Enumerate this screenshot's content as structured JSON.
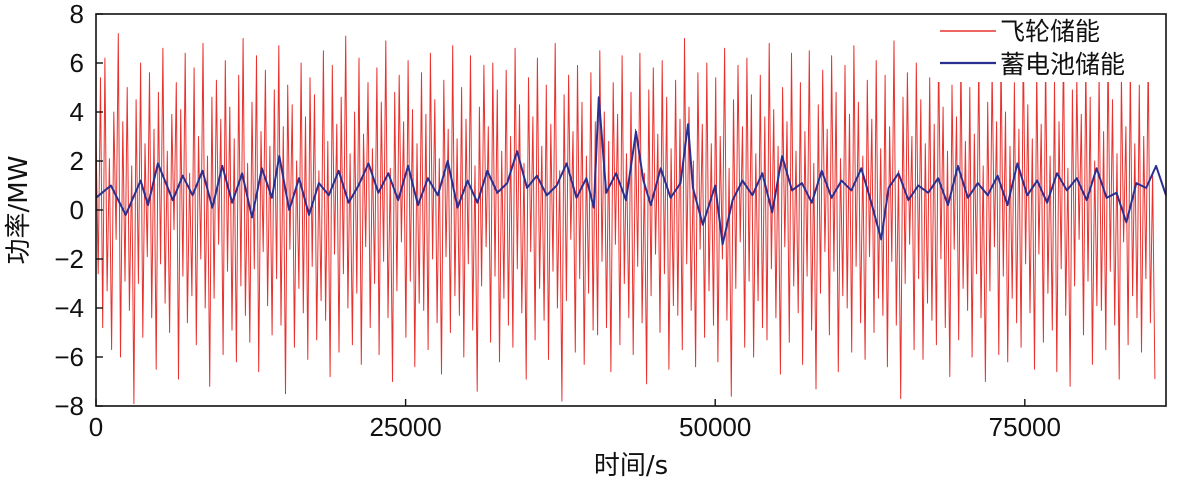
{
  "chart_data": {
    "type": "line",
    "title": "",
    "xlabel": "时间/s",
    "ylabel": "功率/MW",
    "xlim": [
      0,
      86400
    ],
    "ylim": [
      -8,
      8
    ],
    "x_ticks": [
      0,
      25000,
      50000,
      75000
    ],
    "x_tick_labels": [
      "0",
      "25000",
      "50000",
      "75000"
    ],
    "y_ticks": [
      -8,
      -6,
      -4,
      -2,
      0,
      2,
      4,
      6,
      8
    ],
    "y_tick_labels": [
      "−8",
      "−6",
      "−4",
      "−2",
      "0",
      "2",
      "4",
      "6",
      "8"
    ],
    "grid": false,
    "legend_position": "top-right",
    "series": [
      {
        "name": "飞轮储能",
        "color": "#e8322e",
        "x_step": 180,
        "values": [
          3.1,
          -2.6,
          5.4,
          -4.8,
          6.2,
          -3.3,
          2.1,
          -5.7,
          4.0,
          -1.2,
          7.2,
          -6.0,
          3.6,
          -2.9,
          5.0,
          -4.1,
          1.8,
          -7.9,
          4.5,
          -3.0,
          6.0,
          -5.2,
          2.7,
          -1.9,
          5.6,
          -4.4,
          3.3,
          -6.5,
          4.8,
          -2.2,
          6.6,
          -3.8,
          2.4,
          -5.0,
          3.9,
          -0.8,
          5.2,
          -6.9,
          4.1,
          -2.7,
          6.4,
          -4.6,
          1.5,
          -3.5,
          5.8,
          -5.5,
          3.0,
          -2.0,
          6.8,
          -4.0,
          2.2,
          -7.2,
          4.6,
          -3.6,
          5.3,
          -1.4,
          3.7,
          -5.9,
          6.1,
          -2.5,
          4.2,
          -4.9,
          2.9,
          -6.2,
          5.5,
          -3.1,
          7.0,
          -4.3,
          1.9,
          -5.4,
          4.4,
          -2.4,
          6.3,
          -6.6,
          3.2,
          -1.7,
          5.7,
          -3.9,
          2.6,
          -5.1,
          4.9,
          -2.8,
          6.7,
          -4.7,
          3.4,
          -7.5,
          5.1,
          -1.6,
          4.3,
          -5.6,
          2.0,
          -3.2,
          6.0,
          -4.2,
          3.8,
          -6.1,
          5.4,
          -2.3,
          4.7,
          -5.3,
          1.6,
          -3.7,
          6.5,
          -4.5,
          2.8,
          -6.8,
          5.9,
          -1.8,
          3.5,
          -5.8,
          4.6,
          -2.6,
          7.1,
          -4.0,
          2.3,
          -5.5,
          4.0,
          -3.4,
          6.2,
          -6.3,
          3.1,
          -1.5,
          5.2,
          -4.8,
          2.5,
          -3.0,
          5.8,
          -5.9,
          4.4,
          -2.1,
          6.9,
          -4.4,
          1.7,
          -7.0,
          4.8,
          -3.3,
          5.5,
          -1.3,
          3.6,
          -5.2,
          6.1,
          -2.9,
          4.1,
          -6.4,
          2.7,
          -3.8,
          5.6,
          -4.1,
          3.9,
          -5.7,
          6.4,
          -2.0,
          4.5,
          -4.6,
          2.1,
          -6.7,
          5.3,
          -1.9,
          3.3,
          -5.0,
          6.7,
          -3.5,
          2.9,
          -4.3,
          5.0,
          -6.0,
          3.7,
          -2.2,
          6.3,
          -4.9,
          1.8,
          -7.4,
          4.2,
          -3.1,
          5.9,
          -1.5,
          3.4,
          -5.4,
          6.0,
          -2.7,
          4.9,
          -6.2,
          2.4,
          -3.6,
          5.7,
          -4.7,
          3.0,
          -5.6,
          6.6,
          -2.4,
          4.3,
          -4.2,
          1.9,
          -6.9,
          5.4,
          -1.7,
          3.8,
          -5.3,
          6.2,
          -3.2,
          2.6,
          -4.5,
          5.1,
          -6.1,
          3.5,
          -2.5,
          6.8,
          -4.0,
          1.6,
          -7.8,
          4.7,
          -3.7,
          5.5,
          -1.2,
          3.2,
          -5.8,
          5.9,
          -2.8,
          4.4,
          -6.3,
          2.2,
          -3.4,
          5.6,
          -4.9,
          3.6,
          -5.1,
          6.5,
          -2.1,
          4.0,
          -4.8,
          2.8,
          -6.6,
          5.2,
          -1.4,
          3.9,
          -5.5,
          6.3,
          -3.0,
          2.3,
          -4.4,
          4.8,
          -5.9,
          3.3,
          -2.3,
          6.4,
          -4.6,
          1.5,
          -7.1,
          4.9,
          -3.5,
          5.8,
          -1.8,
          3.1,
          -5.0,
          6.1,
          -2.6,
          4.6,
          -6.5,
          2.5,
          -3.9,
          5.3,
          -4.3,
          3.7,
          -5.7,
          7.0,
          -2.2,
          4.2,
          -4.1,
          2.0,
          -6.4,
          5.6,
          -1.6,
          3.5,
          -5.2,
          6.0,
          -3.3,
          2.7,
          -4.7,
          5.4,
          -6.2,
          3.0,
          -2.0,
          6.6,
          -4.5,
          1.7,
          -7.6,
          4.5,
          -3.2,
          5.9,
          -1.3,
          3.4,
          -5.6,
          6.2,
          -2.9,
          4.7,
          -6.0,
          2.3,
          -3.7,
          5.5,
          -4.8,
          3.8,
          -5.3,
          6.8,
          -2.4,
          4.1,
          -4.4,
          2.6,
          -6.7,
          5.0,
          -1.5,
          3.6,
          -5.4,
          6.4,
          -3.1,
          2.4,
          -4.2,
          5.2,
          -6.3,
          3.2,
          -2.7,
          6.5,
          -4.9,
          1.9,
          -7.3,
          4.3,
          -3.4,
          5.7,
          -1.7,
          3.3,
          -5.1,
          6.3,
          -2.5,
          4.8,
          -6.6,
          2.1,
          -3.5,
          5.9,
          -4.0,
          3.9,
          -5.8,
          6.7,
          -2.3,
          4.4,
          -4.6,
          2.2,
          -6.1,
          5.3,
          -1.9,
          3.7,
          -5.0,
          6.1,
          -3.6,
          2.5,
          -4.3,
          5.5,
          -6.4,
          3.4,
          -2.1,
          6.9,
          -4.7,
          1.6,
          -7.7,
          4.6,
          -3.0,
          5.6,
          -1.4,
          3.0,
          -5.7,
          6.0,
          -2.8,
          4.5,
          -6.1,
          2.7,
          -3.8,
          5.4,
          -4.5,
          3.5,
          -5.5,
          6.6,
          -2.0,
          4.2,
          -4.8,
          2.4,
          -6.8,
          5.1,
          -1.6,
          3.8,
          -5.3,
          6.4,
          -3.2,
          2.8,
          -4.1,
          5.0,
          -6.0,
          3.1,
          -2.6,
          6.2,
          -4.4,
          1.8,
          -7.0,
          4.4,
          -3.3,
          5.8,
          -1.5,
          3.6,
          -5.9,
          6.5,
          -2.7,
          4.0,
          -6.2,
          2.6,
          -3.6,
          5.2,
          -4.6,
          3.3,
          -5.6,
          6.9,
          -2.2,
          4.3,
          -4.2,
          2.9,
          -6.5,
          5.7,
          -1.8,
          3.5,
          -5.4,
          6.3,
          -3.4,
          2.2,
          -4.9,
          5.3,
          -6.6,
          3.6,
          -2.4,
          6.7,
          -4.3,
          1.7,
          -7.2,
          4.9,
          -3.1,
          5.4,
          -1.2,
          3.9,
          -5.1,
          6.1,
          -2.9,
          4.6,
          -6.3,
          2.0,
          -3.9,
          5.6,
          -4.1,
          3.2,
          -5.7,
          6.6,
          -2.5,
          4.5,
          -4.7,
          2.3,
          -6.9,
          5.5,
          -1.3,
          3.4,
          -5.5,
          5.9,
          -3.5,
          2.7,
          -4.4,
          5.1,
          -5.8,
          3.0,
          -2.8,
          6.3,
          -4.6,
          1.5,
          -6.9
        ]
      },
      {
        "name": "蓄电池储能",
        "color": "#2b2f8f",
        "x": [
          0,
          1200,
          2400,
          3600,
          4200,
          5000,
          6200,
          7000,
          7800,
          8600,
          9400,
          10200,
          11000,
          11800,
          12600,
          13400,
          14200,
          14800,
          15600,
          16400,
          17200,
          18000,
          18800,
          19600,
          20400,
          21200,
          22000,
          22800,
          23600,
          24400,
          25200,
          26000,
          26800,
          27600,
          28400,
          29200,
          30000,
          30800,
          31600,
          32400,
          33200,
          34000,
          34800,
          35600,
          36400,
          37200,
          38000,
          38800,
          39600,
          40200,
          40600,
          41200,
          42000,
          42800,
          43600,
          44200,
          44800,
          45600,
          46400,
          47200,
          47800,
          48200,
          49000,
          50000,
          50600,
          51400,
          52200,
          53000,
          53800,
          54600,
          55400,
          56200,
          57000,
          57800,
          58600,
          59400,
          60200,
          61000,
          61800,
          62600,
          63400,
          64000,
          64800,
          65600,
          66400,
          67200,
          68000,
          68800,
          69600,
          70400,
          71200,
          72000,
          72800,
          73600,
          74400,
          75200,
          76000,
          76800,
          77600,
          78400,
          79200,
          80000,
          80800,
          81600,
          82400,
          83200,
          84000,
          84800,
          85600,
          86400
        ],
        "values": [
          0.5,
          1.0,
          -0.2,
          1.2,
          0.2,
          1.9,
          0.4,
          1.4,
          0.6,
          1.6,
          0.1,
          1.8,
          0.3,
          1.5,
          -0.3,
          1.7,
          0.5,
          2.2,
          0.0,
          1.3,
          -0.2,
          1.1,
          0.6,
          1.6,
          0.3,
          1.0,
          1.9,
          0.7,
          1.5,
          0.4,
          1.8,
          0.2,
          1.3,
          0.6,
          2.0,
          0.1,
          1.2,
          0.3,
          1.6,
          0.7,
          1.1,
          2.4,
          0.9,
          1.4,
          0.6,
          1.0,
          1.9,
          0.5,
          1.3,
          0.1,
          4.6,
          0.7,
          1.5,
          0.4,
          3.2,
          1.2,
          0.2,
          1.7,
          0.5,
          1.1,
          3.5,
          0.9,
          -0.6,
          1.0,
          -1.4,
          0.4,
          1.2,
          0.6,
          1.5,
          -0.1,
          2.2,
          0.8,
          1.1,
          0.3,
          1.6,
          0.5,
          1.2,
          0.8,
          1.7,
          0.3,
          -1.2,
          0.9,
          1.5,
          0.4,
          1.0,
          0.7,
          1.3,
          0.2,
          1.8,
          0.5,
          1.1,
          0.6,
          1.4,
          0.2,
          1.9,
          0.6,
          1.2,
          0.3,
          1.5,
          0.8,
          1.3,
          0.4,
          1.7,
          0.5,
          0.7,
          -0.5,
          1.1,
          0.9,
          1.8,
          0.6
        ]
      }
    ]
  }
}
